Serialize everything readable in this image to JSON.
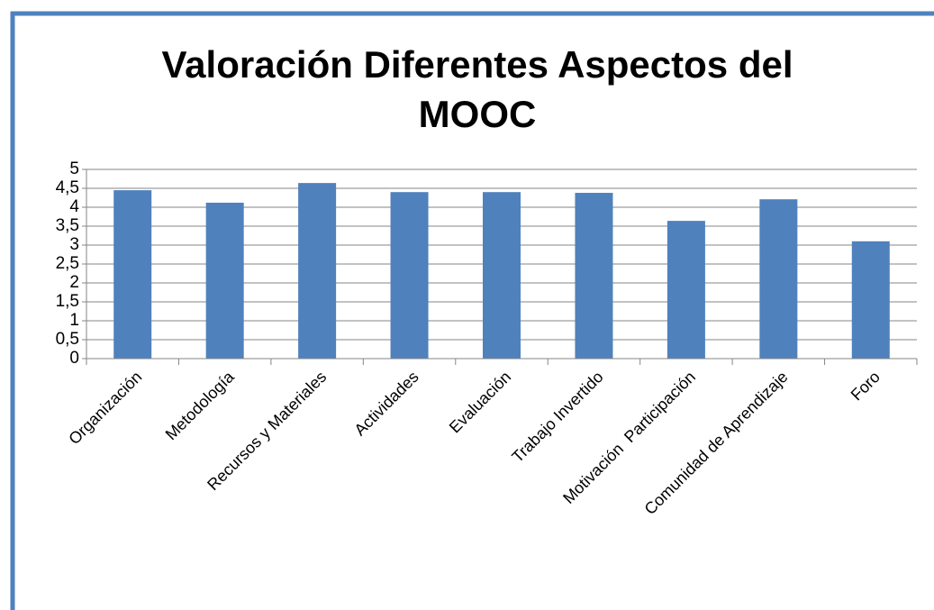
{
  "chart_data": {
    "type": "bar",
    "title": [
      "Valoración Diferentes Aspectos del",
      "MOOC"
    ],
    "categories": [
      "Organización",
      "Metodología",
      "Recursos y Materiales",
      "Actividades",
      "Evaluación",
      "Trabajo Invertido",
      "Motivación  Participación",
      "Comunidad de Aprendizaje",
      "Foro"
    ],
    "values": [
      4.45,
      4.12,
      4.64,
      4.4,
      4.4,
      4.38,
      3.64,
      4.21,
      3.1
    ],
    "color": "#4f81bd",
    "ylim": [
      0,
      5
    ],
    "yticks": [
      0,
      {
        "value": 0.5,
        "label": "0,5"
      },
      1,
      {
        "value": 1.5,
        "label": "1,5"
      },
      2,
      {
        "value": 2.5,
        "label": "2,5"
      },
      3,
      {
        "value": 3.5,
        "label": "3,5"
      },
      4,
      {
        "value": 4.5,
        "label": "4,5"
      },
      5
    ],
    "grid": true
  }
}
